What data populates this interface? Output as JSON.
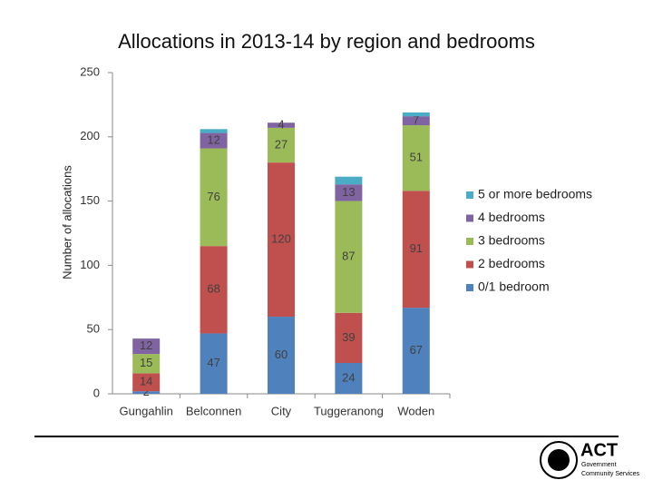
{
  "chart_data": {
    "type": "stacked_bar",
    "title": "Allocations in 2013-14 by region and bedrooms",
    "y_label": "Number of allocations",
    "categories": [
      "Gungahlin",
      "Belconnen",
      "City",
      "Tuggeranong",
      "Woden"
    ],
    "series": [
      {
        "name": "0/1 bedroom",
        "color": "#4f81bd",
        "values": [
          2,
          47,
          60,
          24,
          67
        ],
        "data_labels": true
      },
      {
        "name": "2 bedrooms",
        "color": "#c0504d",
        "values": [
          14,
          68,
          120,
          39,
          91
        ],
        "data_labels": true
      },
      {
        "name": "3 bedrooms",
        "color": "#9bbb59",
        "values": [
          15,
          76,
          27,
          87,
          51
        ],
        "data_labels": true
      },
      {
        "name": "4 bedrooms",
        "color": "#8064a2",
        "values": [
          12,
          12,
          4,
          13,
          7
        ],
        "data_labels": true
      },
      {
        "name": "5 or more bedrooms",
        "color": "#4bacc6",
        "values": [
          0,
          3,
          0,
          6,
          3
        ],
        "data_labels": false
      }
    ],
    "ylim": [
      0,
      250
    ],
    "yticks": [
      0,
      50,
      100,
      150,
      200,
      250
    ],
    "grid": false,
    "legend": "right"
  },
  "footer": {
    "logo": "ACT",
    "org": "Government",
    "dept": "Community Services"
  }
}
